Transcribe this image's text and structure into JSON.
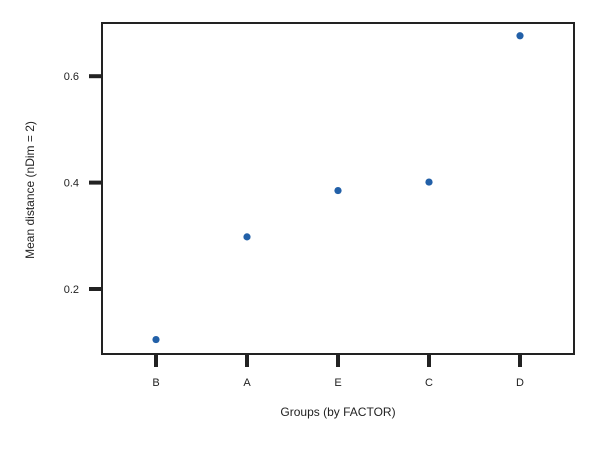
{
  "chart_data": {
    "type": "scatter",
    "title": "",
    "xlabel": "Groups (by FACTOR)",
    "ylabel": "Mean distance (nDim = 2)",
    "categories": [
      "B",
      "A",
      "E",
      "C",
      "D"
    ],
    "series": [
      {
        "values": [
          0.105,
          0.298,
          0.385,
          0.401,
          0.676
        ]
      }
    ],
    "yticks": [
      0.2,
      0.4,
      0.6
    ],
    "ytick_labels": [
      "0.2",
      "0.4",
      "0.6"
    ],
    "ylim": [
      0.08,
      0.705
    ],
    "grid": false,
    "legend": "none",
    "colors": {
      "point": "#2260a8",
      "axis": "#222222"
    }
  }
}
